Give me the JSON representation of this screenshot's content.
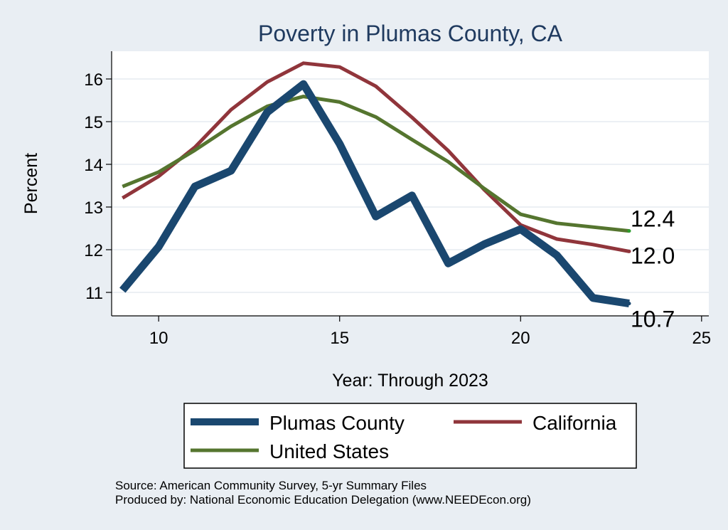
{
  "chart_data": {
    "type": "line",
    "title": "Poverty in Plumas County, CA",
    "xlabel": "Year: Through 2023",
    "ylabel": "Percent",
    "xlim": [
      8.7,
      25.2
    ],
    "ylim": [
      10.45,
      16.65
    ],
    "xticks": [
      10,
      15,
      20,
      25
    ],
    "yticks": [
      11,
      12,
      13,
      14,
      15,
      16
    ],
    "grid": true,
    "x": [
      9,
      10,
      11,
      12,
      13,
      14,
      15,
      16,
      17,
      18,
      19,
      20,
      21,
      22,
      23
    ],
    "series": [
      {
        "name": "Plumas County",
        "color": "#1a476f",
        "values": [
          11.05,
          12.07,
          13.48,
          13.85,
          15.22,
          15.88,
          14.48,
          12.78,
          13.27,
          11.68,
          12.13,
          12.48,
          11.87,
          10.87,
          10.74
        ],
        "end_label": "10.7"
      },
      {
        "name": "California",
        "color": "#90353b",
        "values": [
          13.21,
          13.72,
          14.4,
          15.28,
          15.93,
          16.37,
          16.28,
          15.83,
          15.1,
          14.32,
          13.4,
          12.58,
          12.25,
          12.12,
          11.96
        ],
        "end_label": "12.0"
      },
      {
        "name": "United States",
        "color": "#55752f",
        "values": [
          13.48,
          13.82,
          14.33,
          14.89,
          15.36,
          15.59,
          15.46,
          15.11,
          14.58,
          14.06,
          13.43,
          12.83,
          12.62,
          12.53,
          12.44
        ],
        "end_label": "12.4"
      }
    ],
    "legend": {
      "placement": "bottom",
      "entries": [
        "Plumas County",
        "California",
        "United States"
      ]
    }
  },
  "notes": {
    "source": "Source: American Community Survey, 5-yr Summary Files",
    "producer": "Produced by: National Economic Education Delegation (www.NEEDEcon.org)"
  }
}
